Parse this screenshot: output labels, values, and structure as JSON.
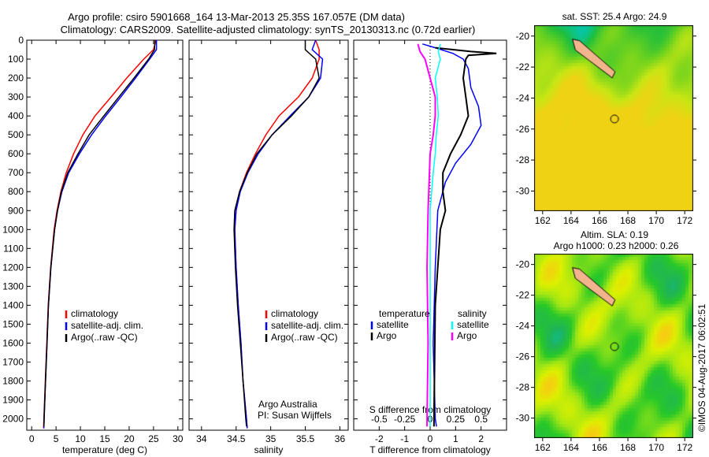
{
  "chart_data": [
    {
      "type": "line",
      "id": "temp",
      "title": [
        "Argo profile: csiro 5901668_164 13-Mar-2013 25.35S 167.057E (DM data)",
        "Climatology: CARS2009. Satellite-adjusted climatology: synTS_20130313.nc (0.72d earlier)"
      ],
      "xlabel": "temperature (deg C)",
      "xlim": [
        -1,
        31
      ],
      "xticks": [
        0,
        5,
        10,
        15,
        20,
        25,
        30
      ],
      "ylim": [
        0,
        2060
      ],
      "yticks": [
        0,
        100,
        200,
        300,
        400,
        500,
        600,
        700,
        800,
        900,
        1000,
        1100,
        1200,
        1300,
        1400,
        1500,
        1600,
        1700,
        1800,
        1900,
        2000
      ],
      "legend": [
        "climatology",
        "satellite-adj. clim.",
        "Argo(..raw -QC)"
      ],
      "series": [
        {
          "name": "climatology",
          "color": "#ff0000",
          "depth": [
            0,
            50,
            100,
            200,
            300,
            400,
            500,
            600,
            700,
            800,
            900,
            1000,
            1200,
            1400,
            1600,
            1800,
            2000,
            2050
          ],
          "values": [
            25.5,
            25,
            23,
            19.5,
            16.3,
            13,
            10.5,
            8.6,
            7.1,
            6,
            5.2,
            4.6,
            3.9,
            3.4,
            3.1,
            2.8,
            2.5,
            2.45
          ]
        },
        {
          "name": "satellite-adj. clim.",
          "color": "#0000ff",
          "depth": [
            0,
            50,
            100,
            200,
            300,
            400,
            500,
            600,
            700,
            800,
            900,
            1000,
            1200,
            1400,
            1600,
            1800,
            2000,
            2050
          ],
          "values": [
            25.6,
            25.6,
            24.2,
            21.3,
            18.3,
            15.2,
            12.3,
            9.8,
            7.6,
            6.2,
            5.3,
            4.7,
            3.95,
            3.45,
            3.15,
            2.85,
            2.55,
            2.5
          ]
        },
        {
          "name": "Argo(..raw -QC)",
          "color": "#000000",
          "depth": [
            0,
            50,
            100,
            200,
            300,
            400,
            500,
            600,
            700,
            800,
            900,
            1000,
            1200,
            1400,
            1600,
            1800,
            2000,
            2040
          ],
          "values": [
            25.3,
            25.2,
            24,
            21,
            17.9,
            14.8,
            11.8,
            9.5,
            7.4,
            6.1,
            5.3,
            4.7,
            3.95,
            3.45,
            3.15,
            2.85,
            2.55,
            2.5
          ]
        }
      ]
    },
    {
      "type": "line",
      "id": "sal",
      "xlabel": "salinity",
      "xlim": [
        33.82,
        36.12
      ],
      "xticks": [
        34,
        34.5,
        35,
        35.5,
        36
      ],
      "legend": [
        "climatology",
        "satellite-adj. clim.",
        "Argo(..raw -QC)"
      ],
      "annotation": [
        "Argo Australia",
        "PI: Susan Wijffels"
      ],
      "series": [
        {
          "name": "climatology",
          "color": "#ff0000",
          "depth": [
            0,
            50,
            100,
            200,
            300,
            400,
            500,
            600,
            700,
            800,
            900,
            1000,
            1200,
            1400,
            1600,
            1800,
            2000,
            2050
          ],
          "values": [
            35.65,
            35.7,
            35.7,
            35.6,
            35.4,
            35.12,
            34.93,
            34.78,
            34.65,
            34.55,
            34.5,
            34.48,
            34.5,
            34.53,
            34.57,
            34.6,
            34.65,
            34.66
          ]
        },
        {
          "name": "satellite-adj. clim.",
          "color": "#0000ff",
          "depth": [
            0,
            50,
            100,
            200,
            300,
            400,
            500,
            600,
            700,
            800,
            900,
            1000,
            1200,
            1400,
            1600,
            1800,
            2000,
            2050
          ],
          "values": [
            35.65,
            35.6,
            35.75,
            35.72,
            35.55,
            35.28,
            35.02,
            34.82,
            34.67,
            34.56,
            34.5,
            34.48,
            34.5,
            34.53,
            34.57,
            34.6,
            34.65,
            34.66
          ]
        },
        {
          "name": "Argo(..raw -QC)",
          "color": "#000000",
          "depth": [
            0,
            50,
            100,
            200,
            300,
            400,
            500,
            600,
            700,
            800,
            900,
            1000,
            1200,
            1400,
            1600,
            1800,
            2000,
            2040
          ],
          "values": [
            35.5,
            35.5,
            35.65,
            35.7,
            35.55,
            35.3,
            35.02,
            34.8,
            34.66,
            34.55,
            34.48,
            34.47,
            34.49,
            34.52,
            34.56,
            34.6,
            34.64,
            34.65
          ]
        }
      ]
    },
    {
      "type": "line",
      "id": "diff",
      "xlabel": "T difference from climatology",
      "xlim": [
        -3,
        3
      ],
      "xticks": [
        -2,
        -1,
        0,
        1,
        2
      ],
      "x2label": "S difference from climatology",
      "x2lim": [
        -0.75,
        0.75
      ],
      "x2ticks": [
        -0.5,
        -0.25,
        0,
        0.25,
        0.5
      ],
      "legend_titles": [
        "temperature",
        "salinity"
      ],
      "legend": [
        "satellite",
        "Argo",
        "satellite",
        "Argo"
      ],
      "series": [
        {
          "name": "T satellite",
          "axis": "T",
          "color": "#0000ff",
          "depth": [
            20,
            40,
            70,
            100,
            150,
            250,
            350,
            450,
            550,
            650,
            750,
            900,
            1200,
            1600,
            2000,
            2040
          ],
          "values": [
            -0.3,
            0.2,
            0.9,
            1.3,
            1.5,
            1.6,
            1.9,
            2.0,
            1.6,
            1.0,
            0.6,
            0.3,
            0.2,
            0.12,
            0.2,
            0.25
          ]
        },
        {
          "name": "T Argo",
          "axis": "T",
          "color": "#000000",
          "depth": [
            40,
            60,
            70,
            80,
            100,
            200,
            300,
            400,
            500,
            600,
            700,
            800,
            900,
            1000,
            1400,
            2000,
            2040
          ],
          "values": [
            0.2,
            1.6,
            2.6,
            1.5,
            1.4,
            1.3,
            1.4,
            1.5,
            1.2,
            0.8,
            0.5,
            0.5,
            0.6,
            0.4,
            0.2,
            0.15,
            0.15
          ]
        },
        {
          "name": "S satellite",
          "axis": "S",
          "color": "#00ffff",
          "depth": [
            20,
            60,
            100,
            200,
            300,
            400,
            500,
            600,
            700,
            900,
            1200,
            2000,
            2040
          ],
          "values": [
            0.1,
            0.08,
            0.1,
            0.05,
            0.07,
            0.08,
            0.06,
            0.05,
            0.03,
            0.0,
            0.0,
            0.0,
            0.0
          ]
        },
        {
          "name": "S Argo",
          "axis": "S",
          "color": "#ff00ff",
          "depth": [
            20,
            60,
            100,
            200,
            300,
            400,
            500,
            600,
            900,
            1200,
            1600,
            2000,
            2040
          ],
          "values": [
            -0.12,
            -0.1,
            -0.05,
            0.0,
            0.05,
            0.05,
            0.03,
            0.0,
            -0.02,
            -0.03,
            -0.02,
            -0.03,
            -0.03
          ]
        }
      ]
    },
    {
      "type": "heatmap",
      "id": "sst",
      "title": "sat. SST: 25.4  Argo: 24.9",
      "xticks": [
        162,
        164,
        166,
        168,
        170,
        172
      ],
      "yticks": [
        -20,
        -22,
        -24,
        -26,
        -28,
        -30
      ],
      "xlim": [
        161.4,
        172.6
      ],
      "ylim": [
        -31.3,
        -19.3
      ],
      "marker": [
        167.06,
        -25.35
      ]
    },
    {
      "type": "heatmap",
      "id": "sla",
      "title": [
        "Altim. SLA: 0.19",
        "Argo h1000: 0.23 h2000: 0.26"
      ],
      "xticks": [
        162,
        164,
        166,
        168,
        170,
        172
      ],
      "yticks": [
        -20,
        -22,
        -24,
        -26,
        -28,
        -30
      ],
      "xlim": [
        161.4,
        172.6
      ],
      "ylim": [
        -31.3,
        -19.3
      ],
      "marker": [
        167.06,
        -25.35
      ]
    }
  ],
  "footer": "©IMOS 04-Aug-2017 06:02:51"
}
